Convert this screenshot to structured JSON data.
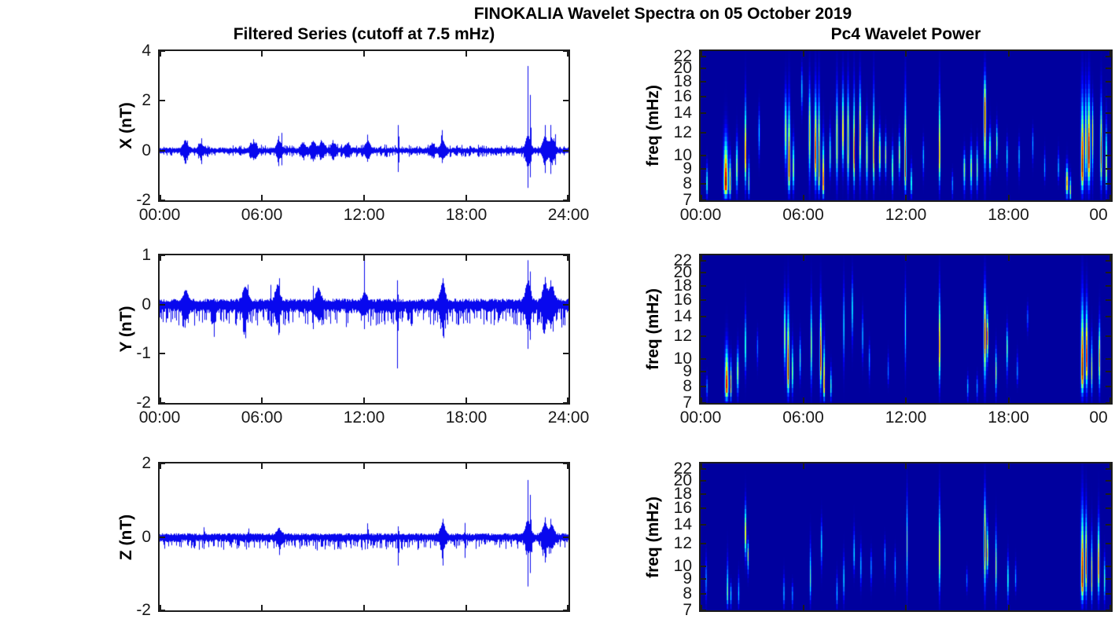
{
  "figure": {
    "title": "FINOKALIA Wavelet Spectra on 05 October 2019",
    "left_title": "Filtered Series (cutoff at 7.5 mHz)",
    "right_title": "Pc4 Wavelet Power",
    "colors": {
      "line": "#0808ee",
      "axis": "#1c1c1c",
      "spectrogram_low": "#0000a0"
    }
  },
  "chart_data": [
    {
      "id": "x-series",
      "type": "line",
      "ylabel": "X (nT)",
      "ylim": [
        -2,
        4
      ],
      "yticks": [
        -2,
        0,
        2,
        4
      ],
      "xtick_hours": [
        0,
        6,
        12,
        18,
        24
      ],
      "xtick_labels": [
        "00:00",
        "06:00",
        "12:00",
        "18:00",
        "24:00"
      ],
      "noise_up": 0.13,
      "noise_dn": 0.13,
      "needle_amp": 0.14,
      "needle_density": 0.3,
      "symmetric": true,
      "bursts": [
        [
          1.5,
          0.3
        ],
        [
          2.4,
          0.2
        ],
        [
          5.5,
          0.22
        ],
        [
          7.0,
          0.3
        ],
        [
          8.4,
          0.22
        ],
        [
          9.0,
          0.28
        ],
        [
          9.5,
          0.26
        ],
        [
          10.2,
          0.22
        ],
        [
          11.0,
          0.18
        ],
        [
          12.2,
          0.3
        ],
        [
          16.0,
          0.15
        ],
        [
          16.6,
          0.3
        ],
        [
          21.6,
          0.5
        ],
        [
          22.6,
          0.45
        ],
        [
          23.0,
          0.4
        ]
      ],
      "spikes": [
        [
          1.5,
          0.62,
          -0.82
        ],
        [
          2.45,
          0.5,
          -0.55
        ],
        [
          5.5,
          0.48,
          -0.4
        ],
        [
          6.95,
          0.8,
          -0.85
        ],
        [
          7.15,
          0.72,
          -0.6
        ],
        [
          12.2,
          0.78,
          -0.55
        ],
        [
          14.0,
          1.25,
          -1.05
        ],
        [
          16.55,
          1.12,
          -0.45
        ],
        [
          21.6,
          3.4,
          -1.5
        ],
        [
          21.75,
          2.5,
          -1.2
        ],
        [
          22.6,
          1.25,
          -1.1
        ],
        [
          22.95,
          1.15,
          -1.05
        ],
        [
          23.2,
          0.8,
          -0.7
        ]
      ]
    },
    {
      "id": "y-series",
      "type": "line",
      "ylabel": "Y (nT)",
      "ylim": [
        -2,
        1
      ],
      "yticks": [
        -2,
        -1,
        0,
        1
      ],
      "xtick_hours": [
        0,
        6,
        12,
        18,
        24
      ],
      "xtick_labels": [
        "00:00",
        "06:00",
        "12:00",
        "18:00",
        "24:00"
      ],
      "noise_up": 0.12,
      "noise_dn": 0.18,
      "needle_amp": 0.3,
      "needle_density": 0.35,
      "symmetric": false,
      "bursts": [
        [
          1.5,
          0.2
        ],
        [
          5.0,
          0.3
        ],
        [
          6.9,
          0.3
        ],
        [
          9.3,
          0.25
        ],
        [
          12.0,
          0.15
        ],
        [
          16.6,
          0.35
        ],
        [
          21.6,
          0.4
        ],
        [
          22.6,
          0.35
        ],
        [
          23.0,
          0.3
        ]
      ],
      "spikes": [
        [
          1.5,
          0.45,
          -0.5
        ],
        [
          3.2,
          0.15,
          -0.8
        ],
        [
          5.15,
          0.55,
          -0.5
        ],
        [
          6.5,
          0.42,
          -0.45
        ],
        [
          7.0,
          0.65,
          -0.7
        ],
        [
          9.0,
          0.38,
          -0.5
        ],
        [
          12.0,
          1.0,
          -0.5
        ],
        [
          13.95,
          0.55,
          -1.45
        ],
        [
          16.6,
          0.65,
          -0.78
        ],
        [
          21.6,
          0.9,
          -0.9
        ],
        [
          21.75,
          0.75,
          -0.8
        ],
        [
          22.6,
          0.68,
          -0.62
        ],
        [
          22.95,
          0.55,
          -0.55
        ]
      ]
    },
    {
      "id": "z-series",
      "type": "line",
      "ylabel": "Z (nT)",
      "ylim": [
        -2,
        2
      ],
      "yticks": [
        -2,
        0,
        2
      ],
      "xtick_hours": [
        0,
        6,
        12,
        18,
        24
      ],
      "xtick_labels": [],
      "noise_up": 0.1,
      "noise_dn": 0.15,
      "needle_amp": 0.22,
      "needle_density": 0.3,
      "symmetric": false,
      "bursts": [
        [
          7.0,
          0.15
        ],
        [
          16.6,
          0.3
        ],
        [
          21.6,
          0.4
        ],
        [
          22.6,
          0.3
        ],
        [
          23.0,
          0.25
        ]
      ],
      "spikes": [
        [
          2.6,
          0.32,
          -0.4
        ],
        [
          5.2,
          0.28,
          -0.35
        ],
        [
          7.0,
          0.3,
          -0.6
        ],
        [
          12.2,
          0.45,
          -0.4
        ],
        [
          14.0,
          0.35,
          -0.95
        ],
        [
          16.6,
          0.6,
          -0.95
        ],
        [
          17.9,
          0.4,
          -0.6
        ],
        [
          21.6,
          1.55,
          -1.35
        ],
        [
          21.75,
          1.28,
          -1.1
        ],
        [
          22.6,
          0.65,
          -0.85
        ],
        [
          22.95,
          0.55,
          -0.5
        ]
      ]
    },
    {
      "id": "x-spectrogram",
      "type": "heatmap",
      "ylabel": "freq (mHz)",
      "yscale": "log",
      "ylim": [
        7,
        23
      ],
      "yticks": [
        7,
        8,
        9,
        10,
        12,
        14,
        16,
        18,
        20,
        22
      ],
      "xtick_hours": [
        0,
        6,
        12,
        18,
        24
      ],
      "xtick_labels": [
        "00:00",
        "06:00",
        "12:00",
        "18:00",
        "00"
      ],
      "colormap": "jet",
      "streaks": [
        [
          0.35,
          7,
          10,
          8,
          0.08,
          0.5
        ],
        [
          1.45,
          7,
          14,
          8,
          0.22,
          1.0
        ],
        [
          1.7,
          7,
          11,
          8,
          0.1,
          0.8
        ],
        [
          2.1,
          7,
          13,
          9,
          0.1,
          0.6
        ],
        [
          2.6,
          7,
          20,
          10,
          0.08,
          0.95
        ],
        [
          2.8,
          7,
          11,
          8,
          0.08,
          0.5
        ],
        [
          3.4,
          9,
          16,
          12,
          0.08,
          0.35
        ],
        [
          4.95,
          8,
          20,
          12,
          0.12,
          0.6
        ],
        [
          5.15,
          7,
          20,
          9,
          0.12,
          1.0
        ],
        [
          5.4,
          7,
          13,
          9,
          0.1,
          0.6
        ],
        [
          5.9,
          13,
          22,
          17,
          0.08,
          0.35
        ],
        [
          6.35,
          7,
          22,
          12,
          0.1,
          0.7
        ],
        [
          6.7,
          7,
          22,
          10,
          0.12,
          0.95
        ],
        [
          6.9,
          7,
          22,
          9,
          0.1,
          1.0
        ],
        [
          7.15,
          7,
          14,
          8,
          0.1,
          0.9
        ],
        [
          7.55,
          8,
          14,
          10,
          0.08,
          0.5
        ],
        [
          7.95,
          7,
          22,
          11,
          0.1,
          0.7
        ],
        [
          8.3,
          8,
          22,
          12,
          0.1,
          0.75
        ],
        [
          8.6,
          7,
          22,
          11,
          0.1,
          0.8
        ],
        [
          8.95,
          7,
          22,
          10,
          0.08,
          0.95
        ],
        [
          9.3,
          7,
          22,
          12,
          0.1,
          0.8
        ],
        [
          9.7,
          7,
          16,
          10,
          0.1,
          0.6
        ],
        [
          10.1,
          7,
          22,
          10,
          0.08,
          0.9
        ],
        [
          10.45,
          8,
          14,
          10,
          0.1,
          0.7
        ],
        [
          10.8,
          8,
          13,
          10,
          0.08,
          0.6
        ],
        [
          11.2,
          7,
          12,
          9,
          0.08,
          0.6
        ],
        [
          11.6,
          8,
          13,
          10,
          0.08,
          0.65
        ],
        [
          11.95,
          7,
          22,
          9,
          0.1,
          0.95
        ],
        [
          12.3,
          7,
          10,
          8,
          0.08,
          0.5
        ],
        [
          13.0,
          8,
          12,
          10,
          0.06,
          0.35
        ],
        [
          13.95,
          7,
          22,
          10,
          0.07,
          0.9
        ],
        [
          14.7,
          7,
          9,
          8,
          0.06,
          0.3
        ],
        [
          15.4,
          7,
          11,
          9,
          0.1,
          0.55
        ],
        [
          15.8,
          7,
          12,
          9,
          0.1,
          0.6
        ],
        [
          16.15,
          7,
          12,
          9,
          0.08,
          0.55
        ],
        [
          16.6,
          7,
          22,
          14,
          0.12,
          1.0
        ],
        [
          16.9,
          8,
          14,
          10,
          0.1,
          0.6
        ],
        [
          17.3,
          9,
          14,
          11,
          0.08,
          0.55
        ],
        [
          17.9,
          8,
          12,
          10,
          0.06,
          0.4
        ],
        [
          18.6,
          8,
          12,
          10,
          0.06,
          0.35
        ],
        [
          19.4,
          9,
          13,
          11,
          0.06,
          0.3
        ],
        [
          20.1,
          8,
          11,
          9,
          0.06,
          0.3
        ],
        [
          20.9,
          8,
          11,
          9,
          0.06,
          0.35
        ],
        [
          21.4,
          7,
          10,
          8,
          0.12,
          0.8
        ],
        [
          21.6,
          7,
          9,
          7.5,
          0.08,
          0.6
        ],
        [
          22.3,
          7,
          22,
          9,
          0.15,
          1.0
        ],
        [
          22.5,
          7,
          22,
          11,
          0.1,
          0.7
        ],
        [
          22.68,
          7,
          22,
          10,
          0.15,
          1.0
        ],
        [
          22.9,
          7,
          18,
          12,
          0.08,
          0.65
        ],
        [
          23.4,
          7,
          20,
          10,
          0.1,
          0.9
        ],
        [
          23.7,
          7,
          16,
          9,
          0.08,
          0.7
        ]
      ]
    },
    {
      "id": "y-spectrogram",
      "type": "heatmap",
      "ylabel": "freq (mHz)",
      "yscale": "log",
      "ylim": [
        7,
        23
      ],
      "yticks": [
        7,
        8,
        9,
        10,
        12,
        14,
        16,
        18,
        20,
        22
      ],
      "xtick_hours": [
        0,
        6,
        12,
        18,
        24
      ],
      "xtick_labels": [
        "00:00",
        "06:00",
        "12:00",
        "18:00",
        "00"
      ],
      "colormap": "jet",
      "streaks": [
        [
          0.35,
          7,
          9,
          8,
          0.06,
          0.3
        ],
        [
          1.5,
          7,
          13,
          8,
          0.18,
          0.95
        ],
        [
          1.75,
          7,
          11,
          8,
          0.08,
          0.75
        ],
        [
          2.15,
          7,
          12,
          9,
          0.1,
          0.6
        ],
        [
          2.6,
          8,
          17,
          11,
          0.07,
          0.55
        ],
        [
          3.3,
          9,
          13,
          11,
          0.05,
          0.25
        ],
        [
          4.9,
          8,
          20,
          12,
          0.1,
          0.6
        ],
        [
          5.1,
          7,
          20,
          9,
          0.12,
          1.0
        ],
        [
          5.35,
          7,
          13,
          9,
          0.08,
          0.6
        ],
        [
          5.8,
          8,
          13,
          10,
          0.06,
          0.45
        ],
        [
          6.45,
          7,
          20,
          11,
          0.08,
          0.6
        ],
        [
          7.0,
          7,
          20,
          10,
          0.1,
          0.95
        ],
        [
          7.2,
          7,
          14,
          8,
          0.08,
          0.9
        ],
        [
          7.6,
          7,
          10,
          8,
          0.06,
          0.5
        ],
        [
          8.35,
          8,
          22,
          13,
          0.07,
          0.4
        ],
        [
          8.85,
          10,
          22,
          15,
          0.07,
          0.45
        ],
        [
          9.45,
          9,
          16,
          12,
          0.06,
          0.35
        ],
        [
          9.85,
          8,
          12,
          10,
          0.05,
          0.3
        ],
        [
          10.95,
          8,
          11,
          9,
          0.05,
          0.25
        ],
        [
          11.95,
          8,
          22,
          13,
          0.06,
          0.4
        ],
        [
          13.95,
          7,
          22,
          11,
          0.06,
          0.95
        ],
        [
          15.6,
          7,
          9,
          8,
          0.06,
          0.35
        ],
        [
          16.15,
          7,
          9,
          8,
          0.05,
          0.3
        ],
        [
          16.6,
          7,
          22,
          12,
          0.12,
          0.95
        ],
        [
          16.75,
          9,
          16,
          12,
          0.07,
          1.0
        ],
        [
          17.25,
          7,
          12,
          9,
          0.08,
          0.6
        ],
        [
          17.9,
          8,
          14,
          11,
          0.08,
          0.55
        ],
        [
          18.5,
          8,
          11,
          9,
          0.05,
          0.3
        ],
        [
          19.1,
          12,
          16,
          14,
          0.05,
          0.25
        ],
        [
          22.3,
          7,
          22,
          9,
          0.15,
          1.0
        ],
        [
          22.55,
          7,
          20,
          10,
          0.12,
          0.95
        ],
        [
          22.85,
          7,
          14,
          9,
          0.08,
          0.6
        ],
        [
          23.3,
          7,
          16,
          10,
          0.09,
          0.8
        ]
      ]
    },
    {
      "id": "z-spectrogram",
      "type": "heatmap",
      "ylabel": "freq (mHz)",
      "yscale": "log",
      "ylim": [
        7,
        23
      ],
      "yticks": [
        7,
        8,
        9,
        10,
        12,
        14,
        16,
        18,
        20,
        22
      ],
      "xtick_hours": [
        0,
        6,
        12,
        18,
        24
      ],
      "xtick_labels": [],
      "colormap": "jet",
      "streaks": [
        [
          0.3,
          7,
          12,
          9,
          0.05,
          0.3
        ],
        [
          1.55,
          7,
          12,
          8,
          0.08,
          0.55
        ],
        [
          1.75,
          7,
          9,
          8,
          0.06,
          0.4
        ],
        [
          2.2,
          7,
          10,
          8,
          0.05,
          0.35
        ],
        [
          2.6,
          10,
          19,
          13,
          0.08,
          0.8
        ],
        [
          2.75,
          9,
          13,
          11,
          0.06,
          0.6
        ],
        [
          4.85,
          7,
          10,
          8,
          0.05,
          0.35
        ],
        [
          5.35,
          7,
          9,
          8,
          0.05,
          0.3
        ],
        [
          6.4,
          7,
          14,
          9,
          0.07,
          0.5
        ],
        [
          7.05,
          9,
          16,
          12,
          0.06,
          0.4
        ],
        [
          7.95,
          7,
          10,
          8,
          0.05,
          0.35
        ],
        [
          8.35,
          7,
          12,
          9,
          0.06,
          0.4
        ],
        [
          8.95,
          9,
          15,
          11,
          0.06,
          0.4
        ],
        [
          9.35,
          8,
          13,
          10,
          0.05,
          0.35
        ],
        [
          9.95,
          8,
          12,
          10,
          0.05,
          0.3
        ],
        [
          10.75,
          9,
          13,
          11,
          0.05,
          0.3
        ],
        [
          11.35,
          8,
          12,
          10,
          0.05,
          0.3
        ],
        [
          12.05,
          7,
          22,
          12,
          0.05,
          0.5
        ],
        [
          13.95,
          7,
          22,
          11,
          0.05,
          0.8
        ],
        [
          15.55,
          8,
          10,
          9,
          0.05,
          0.25
        ],
        [
          16.6,
          7,
          22,
          12,
          0.1,
          0.95
        ],
        [
          16.75,
          9,
          16,
          11,
          0.06,
          0.85
        ],
        [
          17.25,
          7,
          16,
          10,
          0.08,
          0.6
        ],
        [
          17.95,
          7,
          12,
          9,
          0.07,
          0.5
        ],
        [
          18.4,
          8,
          11,
          9,
          0.05,
          0.3
        ],
        [
          22.3,
          7,
          22,
          9,
          0.15,
          1.0
        ],
        [
          22.52,
          7,
          20,
          10,
          0.1,
          0.9
        ],
        [
          22.85,
          7,
          16,
          9,
          0.08,
          0.7
        ],
        [
          23.25,
          7,
          18,
          10,
          0.1,
          0.85
        ],
        [
          23.6,
          7,
          12,
          9,
          0.06,
          0.5
        ]
      ]
    }
  ]
}
